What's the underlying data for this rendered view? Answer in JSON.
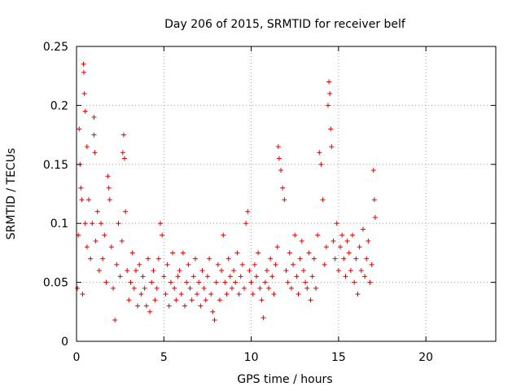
{
  "chart_data": {
    "type": "scatter",
    "title": "Day 206 of 2015, SRMTID for receiver belf",
    "xlabel": "GPS time / hours",
    "ylabel": "SRMTID / TECUs",
    "xlim": [
      0,
      24
    ],
    "ylim": [
      0,
      0.25
    ],
    "xticks": [
      0,
      5,
      10,
      15,
      20
    ],
    "yticks": [
      0,
      0.05,
      0.1,
      0.15,
      0.2,
      0.25
    ],
    "xtick_labels": [
      "0",
      "5",
      "10",
      "15",
      "20"
    ],
    "ytick_labels": [
      "0",
      "0.05",
      "0.1",
      "0.15",
      "0.2",
      "0.25"
    ],
    "grid": true,
    "marker": "+",
    "color": "#e00000",
    "series": [
      {
        "name": "SRMTID",
        "points": [
          [
            0.05,
            0.045
          ],
          [
            0.1,
            0.09
          ],
          [
            0.15,
            0.18
          ],
          [
            0.2,
            0.15
          ],
          [
            0.25,
            0.13
          ],
          [
            0.3,
            0.12
          ],
          [
            0.35,
            0.04
          ],
          [
            0.4,
            0.235
          ],
          [
            0.42,
            0.228
          ],
          [
            0.45,
            0.21
          ],
          [
            0.5,
            0.195
          ],
          [
            0.5,
            0.1
          ],
          [
            0.6,
            0.165
          ],
          [
            0.6,
            0.08
          ],
          [
            0.7,
            0.12
          ],
          [
            0.8,
            0.07
          ],
          [
            0.9,
            0.1
          ],
          [
            1.0,
            0.19
          ],
          [
            1.0,
            0.175
          ],
          [
            1.05,
            0.16
          ],
          [
            1.1,
            0.085
          ],
          [
            1.2,
            0.11
          ],
          [
            1.3,
            0.06
          ],
          [
            1.4,
            0.1
          ],
          [
            1.5,
            0.07
          ],
          [
            1.6,
            0.09
          ],
          [
            1.7,
            0.05
          ],
          [
            1.8,
            0.14
          ],
          [
            1.85,
            0.13
          ],
          [
            1.9,
            0.12
          ],
          [
            2.0,
            0.08
          ],
          [
            2.1,
            0.045
          ],
          [
            2.2,
            0.018
          ],
          [
            2.3,
            0.065
          ],
          [
            2.4,
            0.1
          ],
          [
            2.5,
            0.055
          ],
          [
            2.6,
            0.085
          ],
          [
            2.65,
            0.16
          ],
          [
            2.7,
            0.175
          ],
          [
            2.75,
            0.155
          ],
          [
            2.8,
            0.11
          ],
          [
            2.9,
            0.06
          ],
          [
            3.0,
            0.035
          ],
          [
            3.1,
            0.05
          ],
          [
            3.2,
            0.075
          ],
          [
            3.3,
            0.045
          ],
          [
            3.4,
            0.06
          ],
          [
            3.5,
            0.03
          ],
          [
            3.6,
            0.065
          ],
          [
            3.7,
            0.04
          ],
          [
            3.8,
            0.055
          ],
          [
            3.9,
            0.045
          ],
          [
            4.0,
            0.03
          ],
          [
            4.1,
            0.07
          ],
          [
            4.2,
            0.025
          ],
          [
            4.3,
            0.05
          ],
          [
            4.4,
            0.06
          ],
          [
            4.5,
            0.035
          ],
          [
            4.6,
            0.045
          ],
          [
            4.7,
            0.07
          ],
          [
            4.8,
            0.1
          ],
          [
            4.9,
            0.09
          ],
          [
            5.0,
            0.055
          ],
          [
            5.1,
            0.04
          ],
          [
            5.2,
            0.065
          ],
          [
            5.3,
            0.03
          ],
          [
            5.4,
            0.05
          ],
          [
            5.5,
            0.075
          ],
          [
            5.6,
            0.045
          ],
          [
            5.7,
            0.035
          ],
          [
            5.8,
            0.055
          ],
          [
            5.9,
            0.06
          ],
          [
            6.0,
            0.04
          ],
          [
            6.1,
            0.075
          ],
          [
            6.2,
            0.03
          ],
          [
            6.3,
            0.05
          ],
          [
            6.4,
            0.065
          ],
          [
            6.5,
            0.045
          ],
          [
            6.6,
            0.035
          ],
          [
            6.7,
            0.055
          ],
          [
            6.8,
            0.07
          ],
          [
            6.9,
            0.04
          ],
          [
            7.0,
            0.05
          ],
          [
            7.1,
            0.03
          ],
          [
            7.2,
            0.06
          ],
          [
            7.3,
            0.045
          ],
          [
            7.4,
            0.035
          ],
          [
            7.5,
            0.055
          ],
          [
            7.6,
            0.07
          ],
          [
            7.7,
            0.04
          ],
          [
            7.8,
            0.025
          ],
          [
            7.9,
            0.018
          ],
          [
            8.0,
            0.05
          ],
          [
            8.1,
            0.065
          ],
          [
            8.2,
            0.035
          ],
          [
            8.3,
            0.06
          ],
          [
            8.4,
            0.09
          ],
          [
            8.5,
            0.05
          ],
          [
            8.6,
            0.04
          ],
          [
            8.7,
            0.07
          ],
          [
            8.8,
            0.055
          ],
          [
            8.9,
            0.045
          ],
          [
            9.0,
            0.06
          ],
          [
            9.1,
            0.05
          ],
          [
            9.2,
            0.075
          ],
          [
            9.3,
            0.04
          ],
          [
            9.4,
            0.055
          ],
          [
            9.5,
            0.065
          ],
          [
            9.6,
            0.045
          ],
          [
            9.7,
            0.1
          ],
          [
            9.8,
            0.11
          ],
          [
            9.9,
            0.06
          ],
          [
            10.0,
            0.05
          ],
          [
            10.1,
            0.04
          ],
          [
            10.2,
            0.065
          ],
          [
            10.3,
            0.055
          ],
          [
            10.4,
            0.075
          ],
          [
            10.5,
            0.045
          ],
          [
            10.6,
            0.035
          ],
          [
            10.7,
            0.02
          ],
          [
            10.8,
            0.05
          ],
          [
            10.9,
            0.06
          ],
          [
            11.0,
            0.045
          ],
          [
            11.1,
            0.07
          ],
          [
            11.2,
            0.055
          ],
          [
            11.3,
            0.04
          ],
          [
            11.4,
            0.065
          ],
          [
            11.5,
            0.08
          ],
          [
            11.55,
            0.165
          ],
          [
            11.6,
            0.155
          ],
          [
            11.7,
            0.145
          ],
          [
            11.8,
            0.13
          ],
          [
            11.9,
            0.12
          ],
          [
            12.0,
            0.06
          ],
          [
            12.1,
            0.05
          ],
          [
            12.2,
            0.075
          ],
          [
            12.3,
            0.045
          ],
          [
            12.4,
            0.065
          ],
          [
            12.5,
            0.09
          ],
          [
            12.6,
            0.055
          ],
          [
            12.7,
            0.04
          ],
          [
            12.8,
            0.07
          ],
          [
            12.9,
            0.085
          ],
          [
            13.0,
            0.06
          ],
          [
            13.1,
            0.05
          ],
          [
            13.2,
            0.045
          ],
          [
            13.3,
            0.075
          ],
          [
            13.4,
            0.035
          ],
          [
            13.5,
            0.055
          ],
          [
            13.6,
            0.07
          ],
          [
            13.7,
            0.045
          ],
          [
            13.8,
            0.09
          ],
          [
            13.9,
            0.16
          ],
          [
            14.0,
            0.15
          ],
          [
            14.1,
            0.12
          ],
          [
            14.2,
            0.065
          ],
          [
            14.3,
            0.08
          ],
          [
            14.4,
            0.2
          ],
          [
            14.45,
            0.22
          ],
          [
            14.5,
            0.21
          ],
          [
            14.55,
            0.18
          ],
          [
            14.6,
            0.165
          ],
          [
            14.7,
            0.085
          ],
          [
            14.8,
            0.07
          ],
          [
            14.9,
            0.1
          ],
          [
            15.0,
            0.06
          ],
          [
            15.1,
            0.08
          ],
          [
            15.2,
            0.09
          ],
          [
            15.3,
            0.07
          ],
          [
            15.4,
            0.055
          ],
          [
            15.5,
            0.085
          ],
          [
            15.6,
            0.075
          ],
          [
            15.7,
            0.06
          ],
          [
            15.8,
            0.09
          ],
          [
            15.9,
            0.05
          ],
          [
            16.0,
            0.07
          ],
          [
            16.1,
            0.04
          ],
          [
            16.2,
            0.08
          ],
          [
            16.3,
            0.06
          ],
          [
            16.4,
            0.095
          ],
          [
            16.5,
            0.055
          ],
          [
            16.6,
            0.07
          ],
          [
            16.7,
            0.085
          ],
          [
            16.8,
            0.05
          ],
          [
            16.9,
            0.065
          ],
          [
            17.0,
            0.145
          ],
          [
            17.05,
            0.12
          ],
          [
            17.1,
            0.105
          ]
        ]
      }
    ]
  }
}
